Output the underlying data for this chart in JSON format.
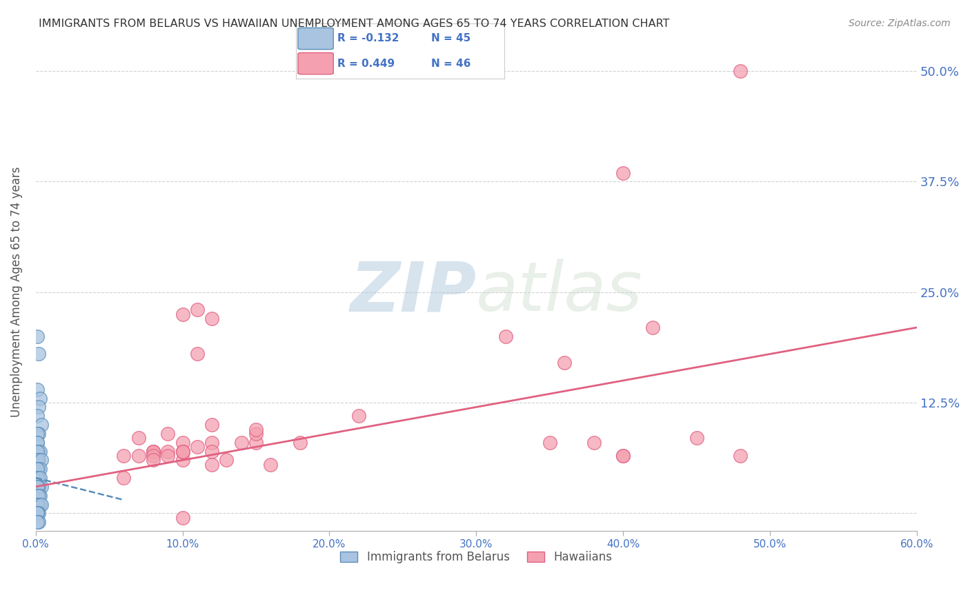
{
  "title": "IMMIGRANTS FROM BELARUS VS HAWAIIAN UNEMPLOYMENT AMONG AGES 65 TO 74 YEARS CORRELATION CHART",
  "source": "Source: ZipAtlas.com",
  "ylabel": "Unemployment Among Ages 65 to 74 years",
  "xmin": 0.0,
  "xmax": 0.6,
  "ymin": -0.02,
  "ymax": 0.52,
  "yticks": [
    0.0,
    0.125,
    0.25,
    0.375,
    0.5
  ],
  "right_ytick_labels": [
    "",
    "12.5%",
    "25.0%",
    "37.5%",
    "50.0%"
  ],
  "watermark_zip": "ZIP",
  "watermark_atlas": "atlas",
  "legend_r1": "R = -0.132",
  "legend_n1": "N = 45",
  "legend_r2": "R = 0.449",
  "legend_n2": "N = 46",
  "legend_label1": "Immigrants from Belarus",
  "legend_label2": "Hawaiians",
  "blue_color": "#a8c4e0",
  "blue_dark": "#5b8db8",
  "pink_color": "#f4a0b0",
  "pink_dark": "#e06080",
  "axis_label_color": "#4472c4",
  "blue_scatter_x": [
    0.001,
    0.002,
    0.001,
    0.003,
    0.002,
    0.001,
    0.004,
    0.002,
    0.001,
    0.001,
    0.001,
    0.002,
    0.003,
    0.001,
    0.002,
    0.001,
    0.004,
    0.002,
    0.001,
    0.003,
    0.001,
    0.001,
    0.002,
    0.001,
    0.003,
    0.004,
    0.001,
    0.002,
    0.001,
    0.001,
    0.003,
    0.001,
    0.002,
    0.001,
    0.001,
    0.002,
    0.003,
    0.001,
    0.004,
    0.001,
    0.002,
    0.001,
    0.001,
    0.002,
    0.001
  ],
  "blue_scatter_y": [
    0.2,
    0.18,
    0.14,
    0.13,
    0.12,
    0.11,
    0.1,
    0.09,
    0.09,
    0.08,
    0.08,
    0.07,
    0.07,
    0.07,
    0.06,
    0.06,
    0.06,
    0.05,
    0.05,
    0.05,
    0.05,
    0.04,
    0.04,
    0.04,
    0.04,
    0.03,
    0.03,
    0.03,
    0.03,
    0.02,
    0.02,
    0.02,
    0.02,
    0.01,
    0.01,
    0.01,
    0.01,
    0.01,
    0.01,
    0.0,
    0.0,
    0.0,
    0.0,
    -0.01,
    -0.01
  ],
  "pink_scatter_x": [
    0.48,
    0.4,
    0.1,
    0.11,
    0.42,
    0.12,
    0.11,
    0.12,
    0.32,
    0.1,
    0.08,
    0.15,
    0.14,
    0.1,
    0.12,
    0.36,
    0.09,
    0.1,
    0.22,
    0.15,
    0.08,
    0.07,
    0.1,
    0.4,
    0.18,
    0.48,
    0.07,
    0.35,
    0.08,
    0.12,
    0.06,
    0.09,
    0.11,
    0.16,
    0.08,
    0.4,
    0.38,
    0.15,
    0.1,
    0.12,
    0.09,
    0.45,
    0.08,
    0.06,
    0.1,
    0.13
  ],
  "pink_scatter_y": [
    0.5,
    0.385,
    0.225,
    0.23,
    0.21,
    0.22,
    0.18,
    0.1,
    0.2,
    0.08,
    0.07,
    0.08,
    0.08,
    0.06,
    0.08,
    0.17,
    0.09,
    0.07,
    0.11,
    0.09,
    0.07,
    0.085,
    0.07,
    0.065,
    0.08,
    0.065,
    0.065,
    0.08,
    0.07,
    0.07,
    0.04,
    0.07,
    0.075,
    0.055,
    0.065,
    0.065,
    0.08,
    0.095,
    0.07,
    0.055,
    0.065,
    0.085,
    0.06,
    0.065,
    -0.005,
    0.06
  ],
  "blue_trend_x": [
    0.0,
    0.06
  ],
  "blue_trend_y": [
    0.04,
    0.015
  ],
  "pink_trend_x": [
    0.0,
    0.6
  ],
  "pink_trend_y": [
    0.03,
    0.21
  ],
  "grid_color": "#d0d0d0",
  "background_color": "#ffffff"
}
